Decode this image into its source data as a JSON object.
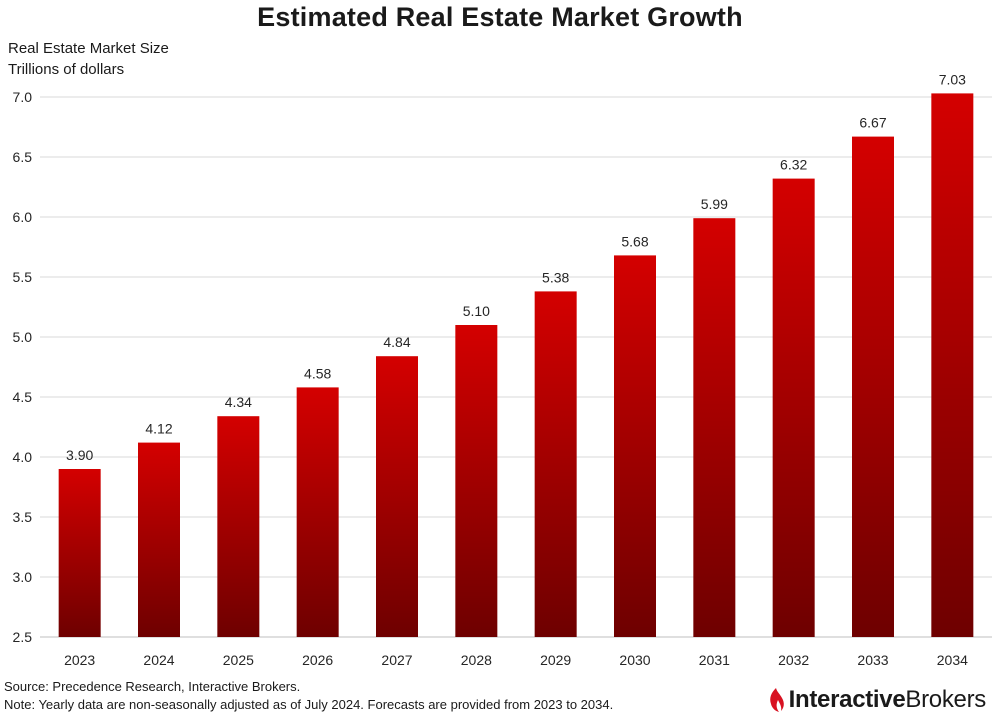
{
  "title": "Estimated Real Estate Market Growth",
  "ylabel_line1": "Real Estate Market Size",
  "ylabel_line2": "Trillions of dollars",
  "source": "Source: Precedence Research, Interactive Brokers.",
  "note": "Note: Yearly data are non-seasonally adjusted as of July 2024. Forecasts are provided from 2023 to 2034.",
  "logo": {
    "word1": "Interactive",
    "word2": "Brokers"
  },
  "colors": {
    "bar_top": "#d40000",
    "bar_bottom": "#6e0000",
    "grid": "#d9d9d9",
    "logo_red": "#d81222"
  },
  "chart_data": {
    "type": "bar",
    "categories": [
      "2023",
      "2024",
      "2025",
      "2026",
      "2027",
      "2028",
      "2029",
      "2030",
      "2031",
      "2032",
      "2033",
      "2034"
    ],
    "values": [
      3.9,
      4.12,
      4.34,
      4.58,
      4.84,
      5.1,
      5.38,
      5.68,
      5.99,
      6.32,
      6.67,
      7.03
    ],
    "labels": [
      "3.90",
      "4.12",
      "4.34",
      "4.58",
      "4.84",
      "5.10",
      "5.38",
      "5.68",
      "5.99",
      "6.32",
      "6.67",
      "7.03"
    ],
    "yticks": [
      "2.5",
      "3.0",
      "3.5",
      "4.0",
      "4.5",
      "5.0",
      "5.5",
      "6.0",
      "6.5",
      "7.0"
    ],
    "ylim": [
      2.5,
      7.0
    ],
    "grid": true
  }
}
